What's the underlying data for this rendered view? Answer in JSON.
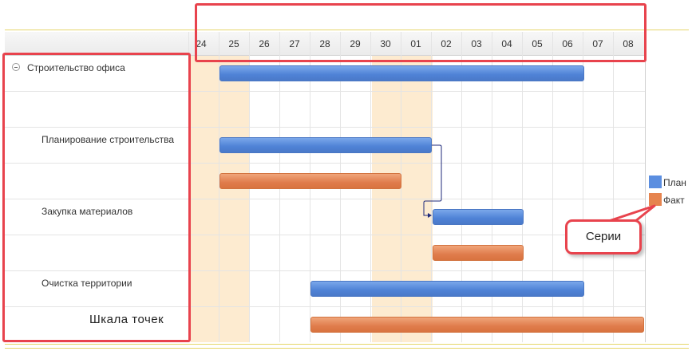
{
  "timeline": {
    "ticks": [
      "24",
      "25",
      "26",
      "27",
      "28",
      "29",
      "30",
      "01",
      "02",
      "03",
      "04",
      "05",
      "06",
      "07",
      "08"
    ]
  },
  "tasks": [
    {
      "label": "Строительство офиса",
      "expandable": true
    },
    {
      "label": "Планирование строительства"
    },
    {
      "label": "Закупка материалов"
    },
    {
      "label": "Очистка территории"
    }
  ],
  "legend": [
    {
      "label": "План",
      "color": "#5b8ee0"
    },
    {
      "label": "Факт",
      "color": "#e6844f"
    }
  ],
  "annotations": {
    "series_callout": "Серии",
    "points_scale": "Шкала точек"
  },
  "colors": {
    "plan": "#5b8ee0",
    "fact": "#e6844f",
    "highlight": "#e8434d",
    "weekend": "#fdebd0"
  }
}
